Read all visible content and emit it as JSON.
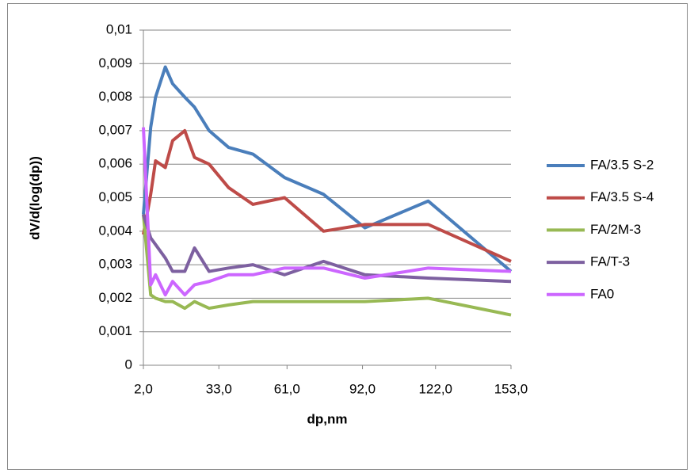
{
  "chart_data": {
    "type": "line",
    "x_label": "dp,nm",
    "y_label": "dV/d(log(dp))",
    "x": [
      2,
      5,
      7,
      11,
      14,
      19,
      23,
      29,
      37,
      47,
      60,
      76,
      93,
      119,
      153
    ],
    "series": [
      {
        "name": "FA/3.5 S-2",
        "color": "#4a7ebb",
        "values": [
          0.0045,
          0.0071,
          0.008,
          0.0089,
          0.0084,
          0.008,
          0.0077,
          0.007,
          0.0065,
          0.0063,
          0.0056,
          0.0051,
          0.0041,
          0.0049,
          0.0028
        ]
      },
      {
        "name": "FA/3.5 S-4",
        "color": "#be4b48",
        "values": [
          0.0039,
          0.0051,
          0.0061,
          0.0059,
          0.0067,
          0.007,
          0.0062,
          0.006,
          0.0053,
          0.0048,
          0.005,
          0.004,
          0.0042,
          0.0042,
          0.0031
        ]
      },
      {
        "name": "FA/2M-3",
        "color": "#98b954",
        "values": [
          0.0045,
          0.0021,
          0.002,
          0.0019,
          0.0019,
          0.0017,
          0.0019,
          0.0017,
          0.0018,
          0.0019,
          0.0019,
          0.0019,
          0.0019,
          0.002,
          0.0015
        ]
      },
      {
        "name": "FA/T-3",
        "color": "#7d60a0",
        "values": [
          0.0045,
          0.0038,
          0.0036,
          0.0032,
          0.0028,
          0.0028,
          0.0035,
          0.0028,
          0.0029,
          0.003,
          0.0027,
          0.0031,
          0.0027,
          0.0026,
          0.0025
        ]
      },
      {
        "name": "FA0",
        "color": "#cc66ff",
        "values": [
          0.0071,
          0.0024,
          0.0027,
          0.0021,
          0.0025,
          0.0021,
          0.0024,
          0.0025,
          0.0027,
          0.0027,
          0.0029,
          0.0029,
          0.0026,
          0.0029,
          0.0028
        ]
      }
    ],
    "xlim": [
      2,
      153
    ],
    "xticks": [
      {
        "value": 2,
        "label": "2,0"
      },
      {
        "value": 33,
        "label": "33,0"
      },
      {
        "value": 61,
        "label": "61,0"
      },
      {
        "value": 92,
        "label": "92,0"
      },
      {
        "value": 122,
        "label": "122,0"
      },
      {
        "value": 153,
        "label": "153,0"
      }
    ],
    "ylim": [
      0,
      0.01
    ],
    "yticks": [
      0,
      {
        "value": 0.001,
        "label": "0,001"
      },
      {
        "value": 0.002,
        "label": "0,002"
      },
      {
        "value": 0.003,
        "label": "0,003"
      },
      {
        "value": 0.004,
        "label": "0,004"
      },
      {
        "value": 0.005,
        "label": "0,005"
      },
      {
        "value": 0.006,
        "label": "0,006"
      },
      {
        "value": 0.007,
        "label": "0,007"
      },
      {
        "value": 0.008,
        "label": "0,008"
      },
      {
        "value": 0.009,
        "label": "0,009"
      },
      {
        "value": 0.01,
        "label": "0,01"
      }
    ],
    "grid": true,
    "legend": "right"
  }
}
